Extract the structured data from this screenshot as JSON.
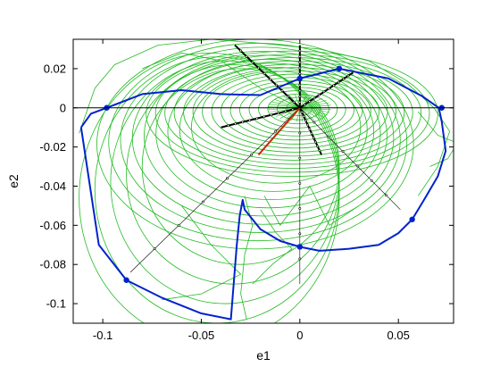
{
  "chart_data": {
    "type": "line",
    "title": "",
    "xlabel": "e1",
    "ylabel": "e2",
    "xlim": [
      -0.115,
      0.078
    ],
    "ylim": [
      -0.11,
      0.035
    ],
    "xticks": [
      -0.1,
      -0.05,
      0,
      0.05
    ],
    "xtick_labels": [
      "-0.1",
      "-0.05",
      "0",
      "0.05"
    ],
    "yticks": [
      0.02,
      0,
      -0.02,
      -0.04,
      -0.06,
      -0.08,
      -0.1
    ],
    "ytick_labels": [
      "0.02",
      "0",
      "-0.02",
      "-0.04",
      "-0.06",
      "-0.08",
      "-0.1"
    ],
    "grid": false,
    "legend": null,
    "colors": {
      "boundary": "#0022cc",
      "trajectory": "#22bb22",
      "spokes": "#000000",
      "heading": "#cc2200"
    },
    "series": [
      {
        "role": "boundary",
        "color": "#0022cc",
        "x": [
          -0.111,
          -0.106,
          -0.098,
          -0.08,
          -0.06,
          -0.04,
          -0.02,
          0.0,
          0.02,
          0.045,
          0.062,
          0.0705,
          0.072,
          0.074,
          0.07,
          0.063,
          0.057,
          0.05,
          0.04,
          0.025,
          0.01,
          0.0,
          -0.01,
          -0.02,
          -0.028,
          -0.029,
          -0.0305,
          -0.032,
          -0.035,
          -0.05,
          -0.07,
          -0.088,
          -0.102,
          -0.108,
          -0.111
        ],
        "y": [
          -0.01,
          -0.003,
          0.0,
          0.007,
          0.009,
          0.007,
          0.0065,
          0.015,
          0.02,
          0.015,
          0.006,
          0.0,
          -0.007,
          -0.022,
          -0.035,
          -0.047,
          -0.057,
          -0.064,
          -0.07,
          -0.072,
          -0.073,
          -0.071,
          -0.068,
          -0.062,
          -0.052,
          -0.047,
          -0.055,
          -0.07,
          -0.108,
          -0.105,
          -0.097,
          -0.088,
          -0.07,
          -0.03,
          -0.01
        ]
      },
      {
        "role": "boundary-markers",
        "color": "#0022cc",
        "x": [
          -0.098,
          -0.088,
          0.0,
          0.057,
          0.072,
          0.02,
          0.0
        ],
        "y": [
          0.0,
          -0.088,
          -0.071,
          -0.057,
          0.0,
          0.02,
          0.015
        ]
      },
      {
        "role": "spokes",
        "color": "#000000",
        "segments": [
          [
            [
              0,
              0
            ],
            [
              -0.033,
              0.032
            ]
          ],
          [
            [
              0,
              0
            ],
            [
              0.0,
              0.032
            ]
          ],
          [
            [
              0,
              0
            ],
            [
              -0.04,
              -0.01
            ]
          ],
          [
            [
              0,
              0
            ],
            [
              0.011,
              -0.024
            ]
          ],
          [
            [
              0,
              0
            ],
            [
              0.0,
              -0.09
            ]
          ],
          [
            [
              0,
              0
            ],
            [
              0.051,
              -0.052
            ]
          ],
          [
            [
              0,
              0
            ],
            [
              -0.086,
              -0.084
            ]
          ],
          [
            [
              0,
              0
            ],
            [
              0.027,
              0.018
            ]
          ]
        ]
      },
      {
        "role": "heading",
        "color": "#cc2200",
        "segments": [
          [
            [
              0,
              0
            ],
            [
              -0.021,
              -0.024
            ]
          ]
        ]
      }
    ]
  }
}
